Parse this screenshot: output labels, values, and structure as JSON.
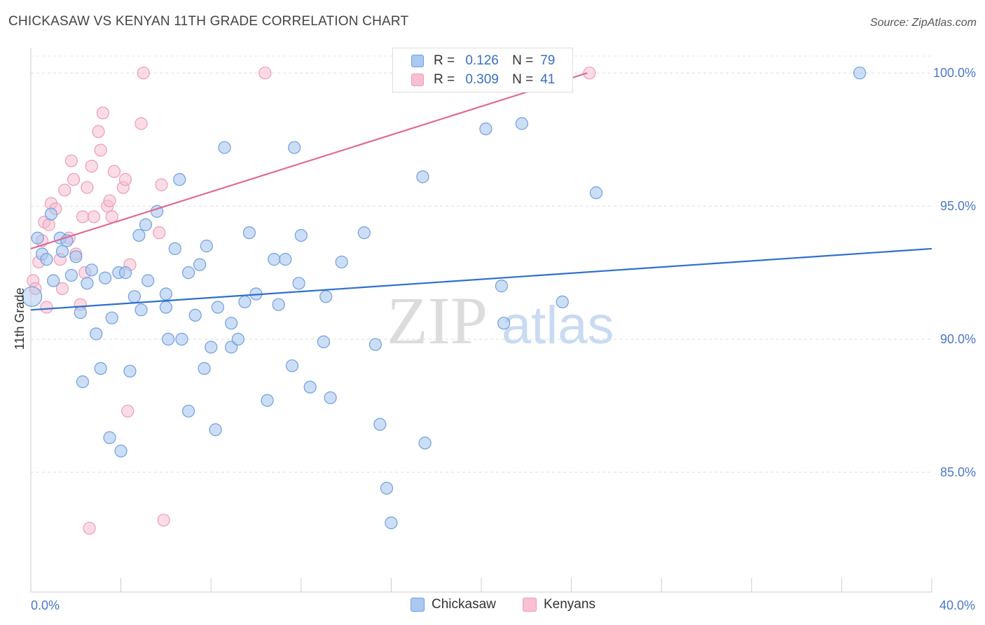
{
  "header": {
    "title": "CHICKASAW VS KENYAN 11TH GRADE CORRELATION CHART",
    "source": "Source: ZipAtlas.com"
  },
  "legend": {
    "rows": [
      {
        "r_label": "R =",
        "r_value": "0.126",
        "n_label": "N =",
        "n_value": "79"
      },
      {
        "r_label": "R =",
        "r_value": "0.309",
        "n_label": "N =",
        "n_value": "41"
      }
    ],
    "bottom": [
      "Chickasaw",
      "Kenyans"
    ]
  },
  "watermark": {
    "zip": "ZIP",
    "atlas": "atlas"
  },
  "colors": {
    "blue_fill": "#aac8f0",
    "blue_stroke": "#6f9fe0",
    "blue_line": "#2f6fcc",
    "pink_fill": "#f8c0d2",
    "pink_stroke": "#ee9ab6",
    "pink_line": "#e06a94",
    "tick_label": "#4a78c8"
  },
  "chart_data": {
    "type": "scatter",
    "xlabel": "",
    "ylabel": "11th Grade",
    "xlim": [
      0,
      40
    ],
    "ylim": [
      80.5,
      100.9
    ],
    "x_tick_labels": [
      {
        "value": 0,
        "label": "0.0%"
      },
      {
        "value": 40,
        "label": "40.0%"
      }
    ],
    "y_ticks": [
      {
        "value": 85,
        "label": "85.0%"
      },
      {
        "value": 90,
        "label": "90.0%"
      },
      {
        "value": 95,
        "label": "95.0%"
      },
      {
        "value": 100,
        "label": "100.0%"
      }
    ],
    "grid": "horizontal dashed",
    "legend_position": "top-center",
    "series": [
      {
        "name": "Chickasaw",
        "color": "#aac8f0",
        "trend": {
          "x": [
            0,
            40
          ],
          "y": [
            91.1,
            93.4
          ]
        },
        "points": [
          [
            0.3,
            93.8
          ],
          [
            0.5,
            93.2
          ],
          [
            0.7,
            93.0
          ],
          [
            0.9,
            94.7
          ],
          [
            1.0,
            92.2
          ],
          [
            1.3,
            93.8
          ],
          [
            1.4,
            93.3
          ],
          [
            1.6,
            93.7
          ],
          [
            1.8,
            92.4
          ],
          [
            2.0,
            93.1
          ],
          [
            2.2,
            91.0
          ],
          [
            2.3,
            88.4
          ],
          [
            2.5,
            92.1
          ],
          [
            2.7,
            92.6
          ],
          [
            2.9,
            90.2
          ],
          [
            3.1,
            88.9
          ],
          [
            3.3,
            92.3
          ],
          [
            3.5,
            86.3
          ],
          [
            3.6,
            90.8
          ],
          [
            3.9,
            92.5
          ],
          [
            4.0,
            85.8
          ],
          [
            4.2,
            92.5
          ],
          [
            4.4,
            88.8
          ],
          [
            4.6,
            91.6
          ],
          [
            4.8,
            93.9
          ],
          [
            4.9,
            91.1
          ],
          [
            5.1,
            94.3
          ],
          [
            5.2,
            92.2
          ],
          [
            5.6,
            94.8
          ],
          [
            6.0,
            91.2
          ],
          [
            6.0,
            91.7
          ],
          [
            6.1,
            90.0
          ],
          [
            6.4,
            93.4
          ],
          [
            6.6,
            96.0
          ],
          [
            6.7,
            90.0
          ],
          [
            7.0,
            87.3
          ],
          [
            7.0,
            92.5
          ],
          [
            7.3,
            90.9
          ],
          [
            7.5,
            92.8
          ],
          [
            7.7,
            88.9
          ],
          [
            7.8,
            93.5
          ],
          [
            8.0,
            89.7
          ],
          [
            8.2,
            86.6
          ],
          [
            8.3,
            91.2
          ],
          [
            8.6,
            97.2
          ],
          [
            8.9,
            89.7
          ],
          [
            8.9,
            90.6
          ],
          [
            9.2,
            90.0
          ],
          [
            9.5,
            91.4
          ],
          [
            9.7,
            94.0
          ],
          [
            10.0,
            91.7
          ],
          [
            10.5,
            87.7
          ],
          [
            10.8,
            93.0
          ],
          [
            11.0,
            91.3
          ],
          [
            11.3,
            93.0
          ],
          [
            11.6,
            89.0
          ],
          [
            11.7,
            97.2
          ],
          [
            11.9,
            92.1
          ],
          [
            12.0,
            93.9
          ],
          [
            12.4,
            88.2
          ],
          [
            13.0,
            89.9
          ],
          [
            13.1,
            91.6
          ],
          [
            13.3,
            87.8
          ],
          [
            13.8,
            92.9
          ],
          [
            14.8,
            94.0
          ],
          [
            15.3,
            89.8
          ],
          [
            15.5,
            86.8
          ],
          [
            15.8,
            84.4
          ],
          [
            16.0,
            83.1
          ],
          [
            17.4,
            96.1
          ],
          [
            17.5,
            86.1
          ],
          [
            20.2,
            97.9
          ],
          [
            20.9,
            92.0
          ],
          [
            21.0,
            90.6
          ],
          [
            21.8,
            98.1
          ],
          [
            23.6,
            91.4
          ],
          [
            25.1,
            95.5
          ],
          [
            36.8,
            100.0
          ],
          [
            0.05,
            91.6
          ]
        ]
      },
      {
        "name": "Kenyans",
        "color": "#f8c0d2",
        "trend": {
          "x": [
            0,
            24.7
          ],
          "y": [
            93.4,
            100.0
          ]
        },
        "points": [
          [
            0.1,
            92.2
          ],
          [
            0.2,
            91.9
          ],
          [
            0.35,
            92.9
          ],
          [
            0.5,
            93.7
          ],
          [
            0.6,
            94.4
          ],
          [
            0.7,
            91.2
          ],
          [
            0.8,
            94.3
          ],
          [
            0.9,
            95.1
          ],
          [
            1.1,
            94.9
          ],
          [
            1.3,
            93.0
          ],
          [
            1.4,
            91.9
          ],
          [
            1.5,
            95.6
          ],
          [
            1.7,
            93.8
          ],
          [
            1.8,
            96.7
          ],
          [
            1.9,
            96.0
          ],
          [
            2.0,
            93.2
          ],
          [
            2.2,
            91.3
          ],
          [
            2.3,
            94.6
          ],
          [
            2.4,
            92.5
          ],
          [
            2.5,
            95.7
          ],
          [
            2.6,
            82.9
          ],
          [
            2.7,
            96.5
          ],
          [
            2.8,
            94.6
          ],
          [
            3.0,
            97.8
          ],
          [
            3.1,
            97.1
          ],
          [
            3.2,
            98.5
          ],
          [
            3.4,
            95.0
          ],
          [
            3.5,
            95.2
          ],
          [
            3.6,
            94.6
          ],
          [
            3.7,
            96.3
          ],
          [
            4.1,
            95.7
          ],
          [
            4.2,
            96.0
          ],
          [
            4.3,
            87.3
          ],
          [
            4.4,
            92.8
          ],
          [
            4.9,
            98.1
          ],
          [
            5.0,
            100.0
          ],
          [
            5.7,
            94.0
          ],
          [
            5.8,
            95.8
          ],
          [
            5.9,
            83.2
          ],
          [
            10.4,
            100.0
          ],
          [
            24.8,
            100.0
          ]
        ]
      }
    ]
  }
}
